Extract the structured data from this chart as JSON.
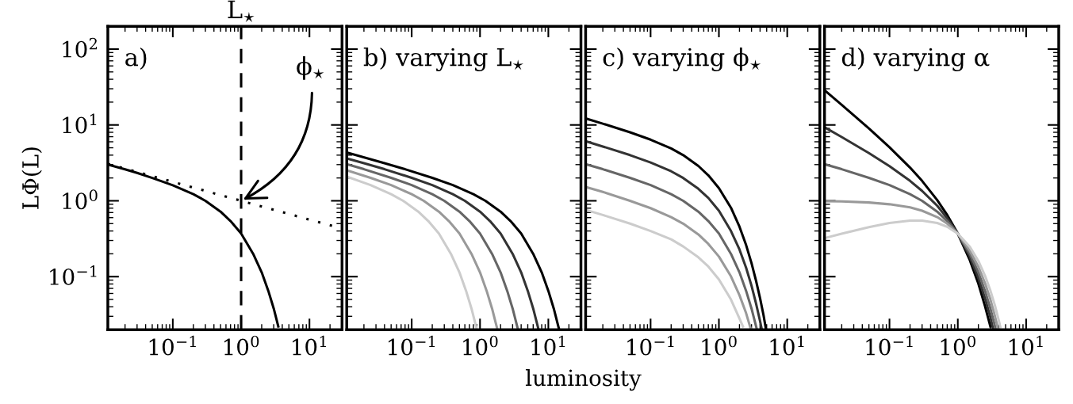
{
  "chart_data": [
    {
      "type": "line",
      "title": "a)",
      "ylabel": "LΦ(L)",
      "log": "xy",
      "xlim": [
        0.0112,
        30
      ],
      "ylim": [
        0.02,
        200
      ],
      "xticks": [
        {
          "value": 0.1,
          "label": "10$^{−1}$"
        },
        {
          "value": 1,
          "label": "10$^{0}$"
        },
        {
          "value": 10,
          "label": "10$^{1}$"
        }
      ],
      "yticks": [
        {
          "value": 0.1,
          "label": "10$^{−1}$"
        },
        {
          "value": 1,
          "label": "10$^{0}$"
        },
        {
          "value": 10,
          "label": "10$^{1}$"
        },
        {
          "value": 100,
          "label": "10$^{2}$"
        }
      ],
      "ref_lines": [
        {
          "axis": "x",
          "value": 1,
          "label": "L$_{⋆}$",
          "color": "#000000",
          "line_style": "dashed"
        }
      ],
      "annotations": [
        {
          "text": "ϕ$_{⋆}$",
          "x": 1,
          "y": 1
        }
      ],
      "series": [
        {
          "color": "#000000",
          "x": [
            0.0112,
            0.02,
            0.03,
            0.05,
            0.1,
            0.2,
            0.3,
            0.5,
            0.7,
            1,
            1.5,
            2,
            2.5,
            3,
            3.5
          ],
          "values": [
            3.0,
            2.6,
            2.33,
            2.0,
            1.6,
            1.22,
            1.0,
            0.72,
            0.54,
            0.37,
            0.2,
            0.114,
            0.065,
            0.038,
            0.022
          ]
        },
        {
          "color": "#000000",
          "line_style": "dotted",
          "x": [
            0.0112,
            1,
            30
          ],
          "values": [
            3.07,
            1.0,
            0.43
          ]
        }
      ]
    },
    {
      "type": "line",
      "title": "b) varying L$_{⋆}$",
      "xlabel": "luminosity",
      "log": "xy",
      "tick_labels": "x",
      "xlim": [
        0.0112,
        30
      ],
      "ylim": [
        0.02,
        200
      ],
      "xticks": [
        {
          "value": 0.1,
          "label": "10$^{−1}$"
        },
        {
          "value": 1,
          "label": "10$^{0}$"
        },
        {
          "value": 10,
          "label": "10$^{1}$"
        }
      ],
      "yticks": [
        {
          "value": 0.1,
          "label": null
        },
        {
          "value": 1,
          "label": null
        },
        {
          "value": 10,
          "label": null
        },
        {
          "value": 100,
          "label": null
        }
      ],
      "series": [
        {
          "color": "#000000",
          "x": [
            0.0112,
            0.04,
            0.08,
            0.2,
            0.4,
            0.8,
            1.2,
            2,
            2.8,
            4,
            6,
            8,
            10,
            12,
            14.2
          ],
          "values": [
            4.33,
            3.13,
            2.61,
            2.01,
            1.61,
            1.22,
            1.0,
            0.72,
            0.54,
            0.37,
            0.2,
            0.114,
            0.065,
            0.038,
            0.021
          ]
        },
        {
          "color": "#333333",
          "x": [
            0.0112,
            0.02,
            0.04,
            0.1,
            0.2,
            0.4,
            0.6,
            1,
            1.4,
            2,
            3,
            4,
            5,
            6,
            7.1
          ],
          "values": [
            3.63,
            3.13,
            2.61,
            2.01,
            1.61,
            1.22,
            1.0,
            0.72,
            0.54,
            0.37,
            0.2,
            0.114,
            0.065,
            0.038,
            0.021
          ]
        },
        {
          "color": "#666666",
          "x": [
            0.0112,
            0.02,
            0.05,
            0.1,
            0.2,
            0.3,
            0.5,
            0.7,
            1,
            1.5,
            2,
            2.5,
            3,
            3.55
          ],
          "values": [
            3.04,
            2.61,
            2.01,
            1.61,
            1.22,
            1.0,
            0.72,
            0.54,
            0.37,
            0.2,
            0.114,
            0.065,
            0.038,
            0.021
          ]
        },
        {
          "color": "#999999",
          "x": [
            0.0112,
            0.025,
            0.05,
            0.1,
            0.15,
            0.25,
            0.35,
            0.5,
            0.75,
            1,
            1.25,
            1.5,
            1.775
          ],
          "values": [
            2.53,
            2.01,
            1.61,
            1.22,
            1.0,
            0.72,
            0.54,
            0.37,
            0.2,
            0.114,
            0.065,
            0.038,
            0.021
          ]
        },
        {
          "color": "#cccccc",
          "x": [
            0.0112,
            0.025,
            0.05,
            0.075,
            0.125,
            0.175,
            0.25,
            0.375,
            0.5,
            0.625,
            0.75,
            0.8875
          ],
          "values": [
            2.08,
            1.61,
            1.22,
            1.0,
            0.72,
            0.54,
            0.37,
            0.2,
            0.114,
            0.065,
            0.038,
            0.021
          ]
        }
      ]
    },
    {
      "type": "line",
      "title": "c) varying ϕ$_{⋆}$",
      "log": "xy",
      "tick_labels": "x",
      "xlim": [
        0.0112,
        30
      ],
      "ylim": [
        0.02,
        200
      ],
      "xticks": [
        {
          "value": 0.1,
          "label": "10$^{−1}$"
        },
        {
          "value": 1,
          "label": "10$^{0}$"
        },
        {
          "value": 10,
          "label": "10$^{1}$"
        }
      ],
      "yticks": [
        {
          "value": 0.1,
          "label": null
        },
        {
          "value": 1,
          "label": null
        },
        {
          "value": 10,
          "label": null
        },
        {
          "value": 100,
          "label": null
        }
      ],
      "series": [
        {
          "color": "#000000",
          "x": [
            0.0112,
            0.02,
            0.05,
            0.1,
            0.2,
            0.3,
            0.5,
            0.7,
            1,
            1.5,
            2,
            2.5,
            3,
            3.5,
            4,
            4.5,
            4.85
          ],
          "values": [
            12.2,
            10.4,
            8.0,
            6.4,
            4.9,
            4.0,
            2.88,
            2.17,
            1.47,
            0.81,
            0.455,
            0.261,
            0.151,
            0.088,
            0.052,
            0.031,
            0.021
          ]
        },
        {
          "color": "#333333",
          "x": [
            0.0112,
            0.02,
            0.05,
            0.1,
            0.2,
            0.3,
            0.5,
            0.7,
            1,
            1.5,
            2,
            2.5,
            3,
            3.5,
            4,
            4.2
          ],
          "values": [
            6.1,
            5.2,
            4.0,
            3.2,
            2.45,
            2.0,
            1.44,
            1.09,
            0.74,
            0.4,
            0.228,
            0.131,
            0.076,
            0.044,
            0.026,
            0.021
          ]
        },
        {
          "color": "#666666",
          "x": [
            0.0112,
            0.02,
            0.05,
            0.1,
            0.2,
            0.3,
            0.5,
            0.7,
            1,
            1.5,
            2,
            2.5,
            3,
            3.55
          ],
          "values": [
            3.04,
            2.61,
            2.01,
            1.61,
            1.22,
            1.0,
            0.72,
            0.54,
            0.37,
            0.2,
            0.114,
            0.065,
            0.038,
            0.021
          ]
        },
        {
          "color": "#999999",
          "x": [
            0.0112,
            0.02,
            0.05,
            0.1,
            0.2,
            0.3,
            0.5,
            0.7,
            1,
            1.5,
            2,
            2.5,
            2.9
          ],
          "values": [
            1.52,
            1.31,
            1.0,
            0.8,
            0.61,
            0.5,
            0.36,
            0.27,
            0.184,
            0.101,
            0.057,
            0.033,
            0.021
          ]
        },
        {
          "color": "#cccccc",
          "x": [
            0.0112,
            0.02,
            0.05,
            0.1,
            0.2,
            0.3,
            0.5,
            0.7,
            1,
            1.5,
            2,
            2.25
          ],
          "values": [
            0.76,
            0.65,
            0.5,
            0.4,
            0.31,
            0.25,
            0.18,
            0.136,
            0.092,
            0.05,
            0.028,
            0.022
          ]
        }
      ]
    },
    {
      "type": "line",
      "title": "d) varying α",
      "log": "xy",
      "tick_labels": "x",
      "xlim": [
        0.0112,
        30
      ],
      "ylim": [
        0.02,
        200
      ],
      "xticks": [
        {
          "value": 0.1,
          "label": "10$^{−1}$"
        },
        {
          "value": 1,
          "label": "10$^{0}$"
        },
        {
          "value": 10,
          "label": "10$^{1}$"
        }
      ],
      "yticks": [
        {
          "value": 0.1,
          "label": null
        },
        {
          "value": 1,
          "label": null
        },
        {
          "value": 10,
          "label": null
        },
        {
          "value": 100,
          "label": null
        }
      ],
      "series": [
        {
          "color": "#000000",
          "x": [
            0.0112,
            0.02,
            0.05,
            0.1,
            0.2,
            0.3,
            0.5,
            0.7,
            1,
            1.5,
            2,
            2.5,
            3
          ],
          "values": [
            28.7,
            18.4,
            9.0,
            5.09,
            2.74,
            1.83,
            1.02,
            0.65,
            0.37,
            0.165,
            0.081,
            0.041,
            0.022
          ]
        },
        {
          "color": "#333333",
          "x": [
            0.0112,
            0.02,
            0.05,
            0.1,
            0.2,
            0.3,
            0.5,
            0.7,
            1,
            1.5,
            2,
            2.5,
            3,
            3.3
          ],
          "values": [
            9.35,
            6.93,
            4.25,
            2.86,
            1.83,
            1.35,
            0.86,
            0.59,
            0.37,
            0.182,
            0.096,
            0.052,
            0.029,
            0.02
          ]
        },
        {
          "color": "#666666",
          "x": [
            0.0112,
            0.02,
            0.05,
            0.1,
            0.2,
            0.3,
            0.5,
            0.7,
            1,
            1.5,
            2,
            2.5,
            3,
            3.55
          ],
          "values": [
            3.04,
            2.61,
            2.01,
            1.61,
            1.22,
            1.0,
            0.72,
            0.54,
            0.37,
            0.2,
            0.114,
            0.065,
            0.038,
            0.021
          ]
        },
        {
          "color": "#999999",
          "x": [
            0.0112,
            0.02,
            0.05,
            0.1,
            0.2,
            0.3,
            0.5,
            0.7,
            1,
            1.5,
            2,
            2.5,
            3,
            3.5,
            3.85
          ],
          "values": [
            0.99,
            0.98,
            0.95,
            0.9,
            0.82,
            0.74,
            0.61,
            0.5,
            0.37,
            0.22,
            0.135,
            0.082,
            0.05,
            0.03,
            0.021
          ]
        },
        {
          "color": "#cccccc",
          "x": [
            0.0112,
            0.02,
            0.05,
            0.1,
            0.2,
            0.3,
            0.5,
            0.7,
            1,
            1.5,
            2,
            2.5,
            3,
            3.5,
            4,
            4.2
          ],
          "values": [
            0.322,
            0.369,
            0.45,
            0.509,
            0.548,
            0.548,
            0.51,
            0.455,
            0.368,
            0.247,
            0.161,
            0.103,
            0.0655,
            0.0413,
            0.0259,
            0.0215
          ]
        }
      ]
    }
  ]
}
